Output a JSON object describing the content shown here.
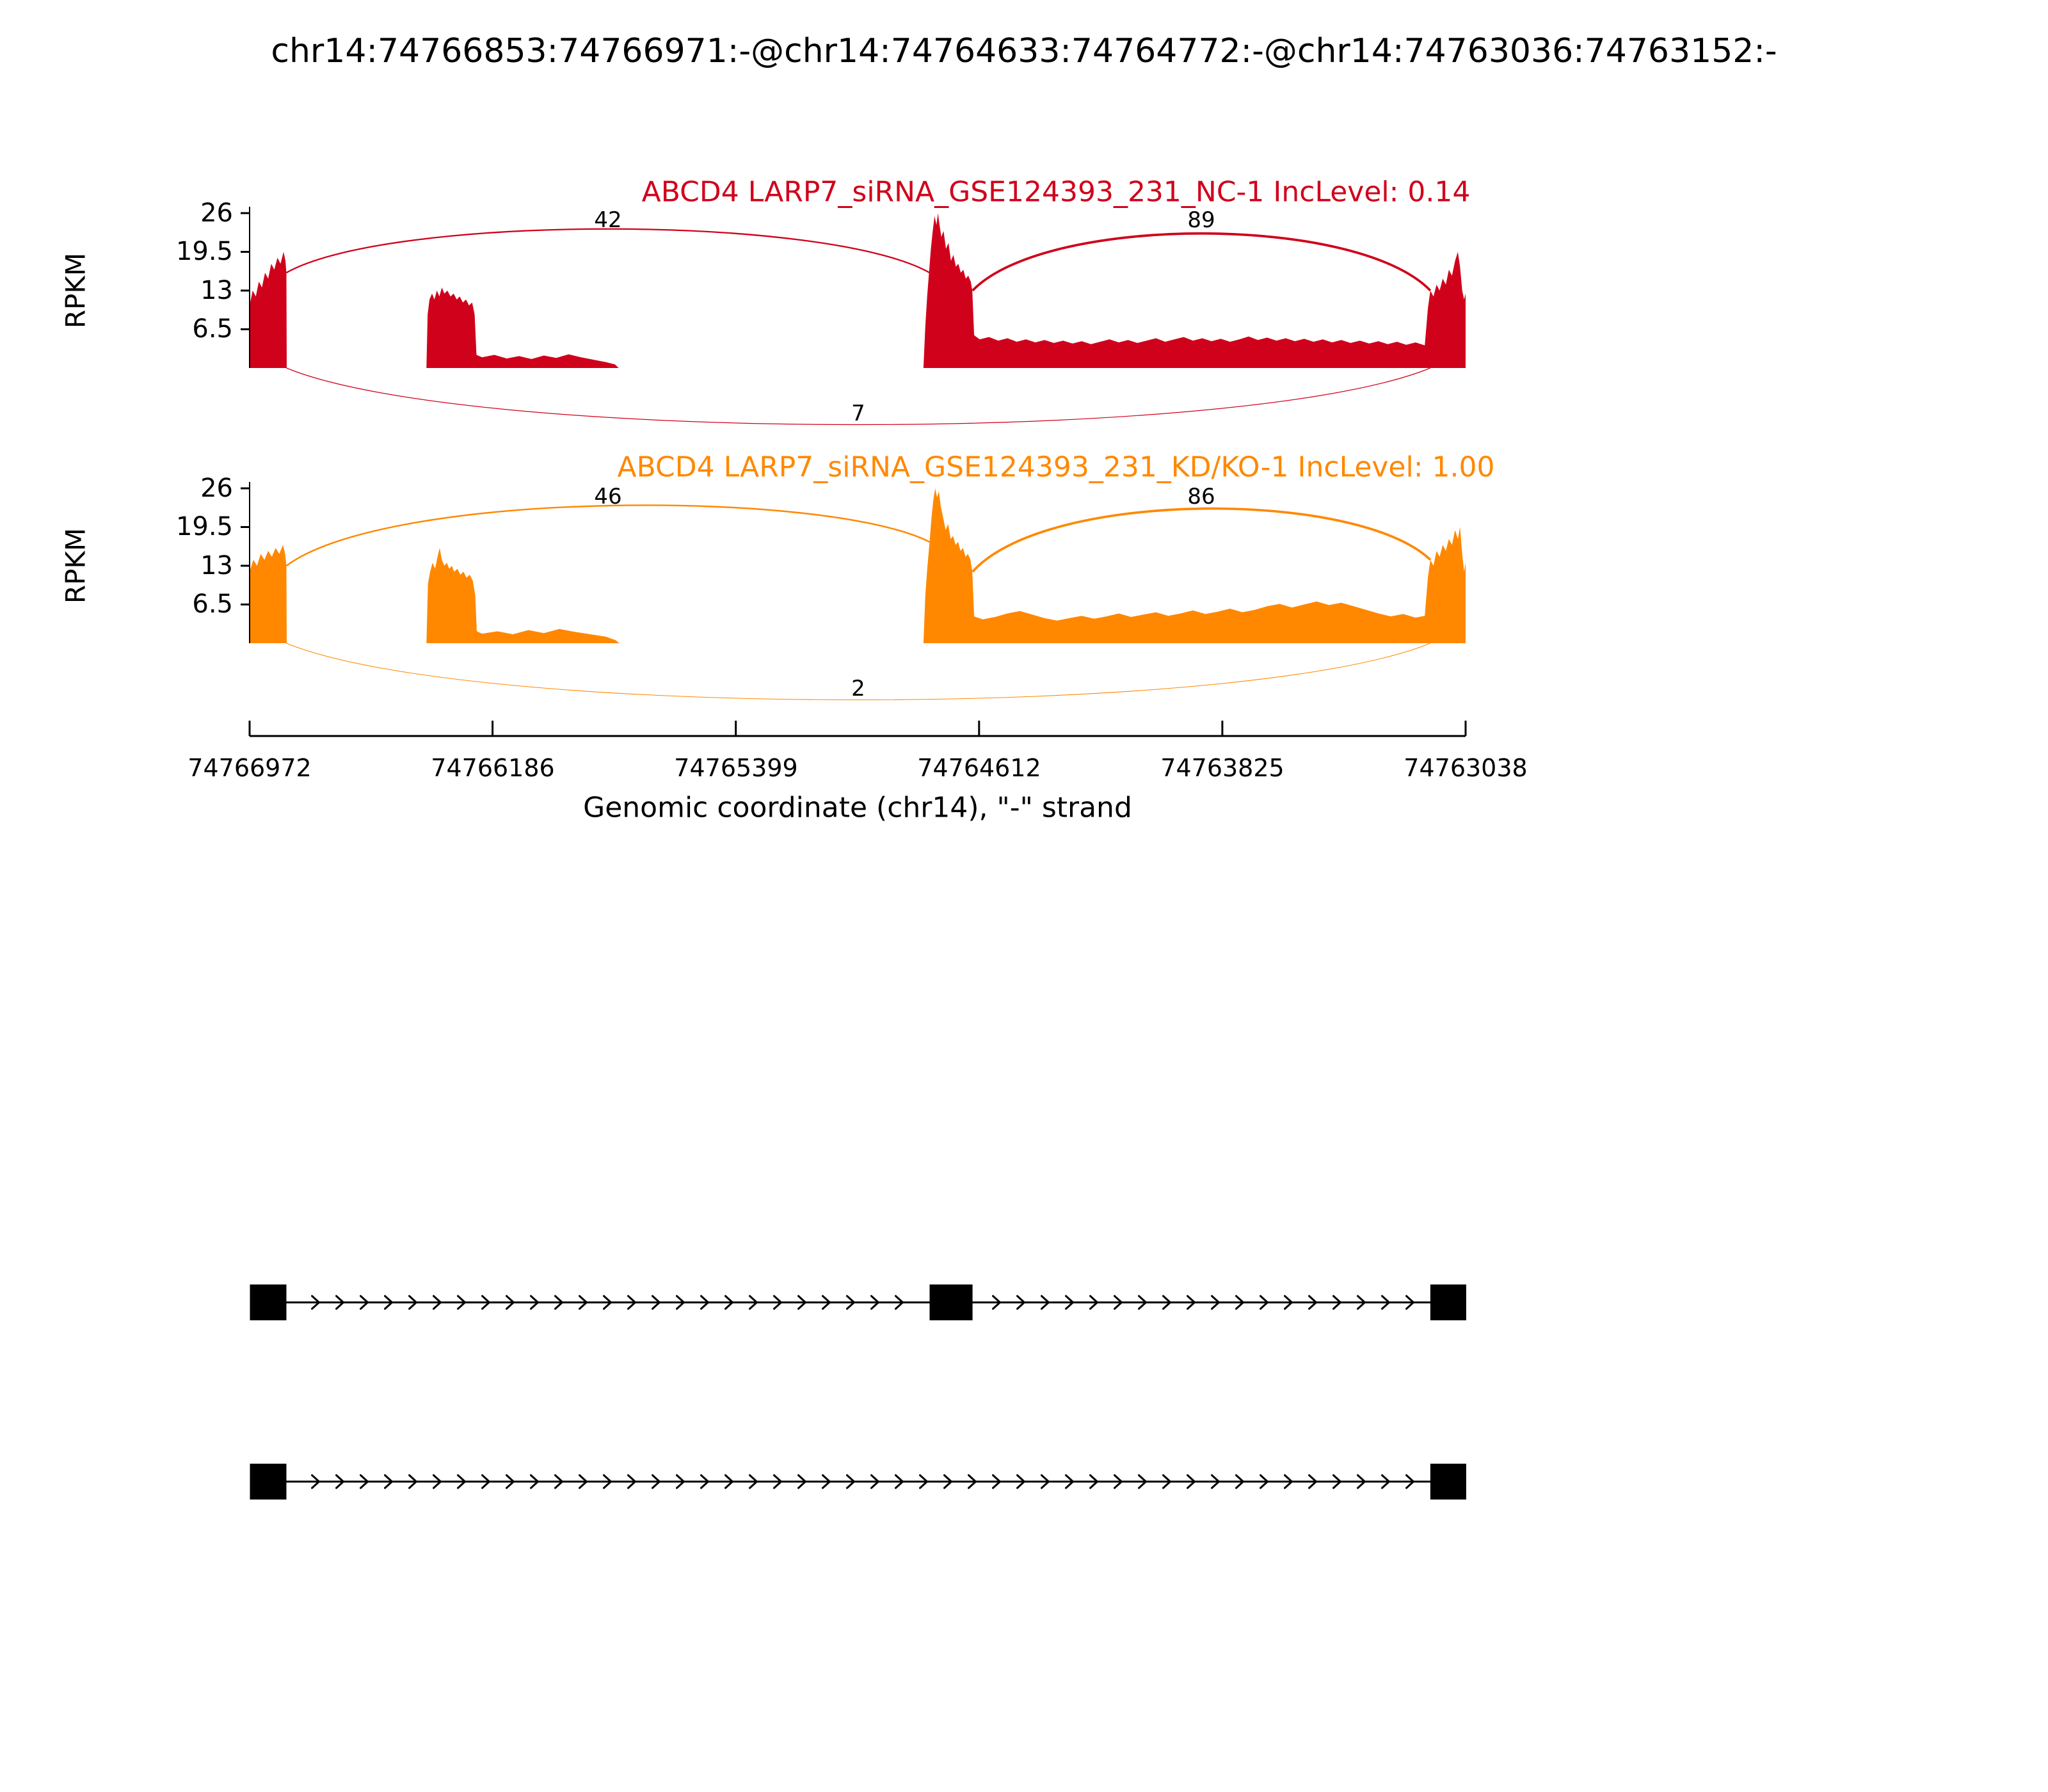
{
  "title": "chr14:74766853:74766971:-@chr14:74764633:74764772:-@chr14:74763036:74763152:-",
  "chart_data": {
    "type": "area",
    "subtype": "sashimi-plot",
    "x_axis": {
      "label": "Genomic coordinate (chr14), \"-\" strand",
      "strand": "-",
      "start": 74766972,
      "end": 74763038,
      "ticks": [
        74766972,
        74766186,
        74765399,
        74764612,
        74763825,
        74763038
      ]
    },
    "y_axis": {
      "label": "RPKM",
      "ticks": [
        26,
        19.5,
        13,
        6.5
      ],
      "max": 26
    },
    "tracks": [
      {
        "label": "ABCD4 LARP7_siRNA_GSE124393_231_NC-1 IncLevel: 0.14",
        "inc_level": 0.14,
        "color": "#D0011B",
        "junctions": [
          {
            "start": 74766853,
            "end": 74764772,
            "count": 42,
            "side": "top"
          },
          {
            "start": 74764633,
            "end": 74763152,
            "count": 89,
            "side": "top"
          },
          {
            "start": 74766853,
            "end": 74763152,
            "count": 7,
            "side": "bottom"
          }
        ],
        "coverage": [
          [
            74766972,
            10.5
          ],
          [
            74766962,
            13
          ],
          [
            74766952,
            12
          ],
          [
            74766942,
            14.5
          ],
          [
            74766932,
            13.5
          ],
          [
            74766922,
            16
          ],
          [
            74766912,
            15
          ],
          [
            74766902,
            17.5
          ],
          [
            74766892,
            16.5
          ],
          [
            74766882,
            18.5
          ],
          [
            74766872,
            17.5
          ],
          [
            74766862,
            19.5
          ],
          [
            74766856,
            18
          ],
          [
            74766853,
            16
          ],
          [
            74766852,
            0
          ],
          [
            74766400,
            0
          ],
          [
            74766396,
            9
          ],
          [
            74766390,
            11.5
          ],
          [
            74766382,
            12.5
          ],
          [
            74766374,
            11.5
          ],
          [
            74766366,
            13
          ],
          [
            74766358,
            12
          ],
          [
            74766350,
            13.5
          ],
          [
            74766342,
            12.5
          ],
          [
            74766332,
            13
          ],
          [
            74766322,
            12
          ],
          [
            74766312,
            12.5
          ],
          [
            74766302,
            11.5
          ],
          [
            74766292,
            12
          ],
          [
            74766282,
            11
          ],
          [
            74766272,
            11.5
          ],
          [
            74766262,
            10.5
          ],
          [
            74766252,
            11
          ],
          [
            74766244,
            9
          ],
          [
            74766238,
            2.2
          ],
          [
            74766220,
            1.8
          ],
          [
            74766180,
            2.2
          ],
          [
            74766140,
            1.6
          ],
          [
            74766100,
            2
          ],
          [
            74766060,
            1.5
          ],
          [
            74766020,
            2.1
          ],
          [
            74765980,
            1.7
          ],
          [
            74765940,
            2.3
          ],
          [
            74765900,
            1.8
          ],
          [
            74765860,
            1.4
          ],
          [
            74765820,
            1
          ],
          [
            74765790,
            0.6
          ],
          [
            74765778,
            0
          ],
          [
            74764792,
            0
          ],
          [
            74764786,
            7
          ],
          [
            74764780,
            12
          ],
          [
            74764774,
            16
          ],
          [
            74764768,
            20
          ],
          [
            74764762,
            23
          ],
          [
            74764756,
            25.5
          ],
          [
            74764750,
            24
          ],
          [
            74764745,
            26
          ],
          [
            74764740,
            24
          ],
          [
            74764734,
            22
          ],
          [
            74764727,
            23
          ],
          [
            74764719,
            20
          ],
          [
            74764711,
            21
          ],
          [
            74764703,
            18
          ],
          [
            74764695,
            19
          ],
          [
            74764687,
            17
          ],
          [
            74764679,
            17.5
          ],
          [
            74764671,
            16
          ],
          [
            74764663,
            16.5
          ],
          [
            74764655,
            15
          ],
          [
            74764647,
            15.5
          ],
          [
            74764639,
            14.5
          ],
          [
            74764634,
            13
          ],
          [
            74764628,
            5.5
          ],
          [
            74764610,
            4.8
          ],
          [
            74764580,
            5.2
          ],
          [
            74764550,
            4.6
          ],
          [
            74764520,
            5
          ],
          [
            74764490,
            4.4
          ],
          [
            74764460,
            4.8
          ],
          [
            74764430,
            4.3
          ],
          [
            74764400,
            4.7
          ],
          [
            74764370,
            4.2
          ],
          [
            74764340,
            4.6
          ],
          [
            74764310,
            4.1
          ],
          [
            74764280,
            4.5
          ],
          [
            74764250,
            4
          ],
          [
            74764220,
            4.4
          ],
          [
            74764190,
            4.8
          ],
          [
            74764160,
            4.3
          ],
          [
            74764130,
            4.7
          ],
          [
            74764100,
            4.2
          ],
          [
            74764070,
            4.6
          ],
          [
            74764040,
            5
          ],
          [
            74764010,
            4.4
          ],
          [
            74763980,
            4.8
          ],
          [
            74763950,
            5.2
          ],
          [
            74763920,
            4.6
          ],
          [
            74763890,
            5
          ],
          [
            74763860,
            4.5
          ],
          [
            74763830,
            4.9
          ],
          [
            74763800,
            4.4
          ],
          [
            74763770,
            4.8
          ],
          [
            74763740,
            5.3
          ],
          [
            74763710,
            4.7
          ],
          [
            74763680,
            5.1
          ],
          [
            74763650,
            4.6
          ],
          [
            74763620,
            5
          ],
          [
            74763590,
            4.5
          ],
          [
            74763560,
            4.9
          ],
          [
            74763530,
            4.4
          ],
          [
            74763500,
            4.8
          ],
          [
            74763470,
            4.3
          ],
          [
            74763440,
            4.7
          ],
          [
            74763410,
            4.2
          ],
          [
            74763380,
            4.6
          ],
          [
            74763350,
            4.1
          ],
          [
            74763320,
            4.5
          ],
          [
            74763290,
            4
          ],
          [
            74763260,
            4.4
          ],
          [
            74763230,
            3.9
          ],
          [
            74763200,
            4.3
          ],
          [
            74763170,
            3.8
          ],
          [
            74763160,
            10
          ],
          [
            74763152,
            13
          ],
          [
            74763142,
            12
          ],
          [
            74763132,
            14
          ],
          [
            74763122,
            13
          ],
          [
            74763112,
            15
          ],
          [
            74763102,
            14
          ],
          [
            74763092,
            16.5
          ],
          [
            74763082,
            15.5
          ],
          [
            74763072,
            18
          ],
          [
            74763063,
            19.5
          ],
          [
            74763056,
            17
          ],
          [
            74763049,
            13
          ],
          [
            74763043,
            11.5
          ],
          [
            74763038,
            12.5
          ]
        ]
      },
      {
        "label": "ABCD4 LARP7_siRNA_GSE124393_231_KD/KO-1 IncLevel: 1.00",
        "inc_level": 1.0,
        "color": "#FF8800",
        "junctions": [
          {
            "start": 74766853,
            "end": 74764772,
            "count": 46,
            "side": "top"
          },
          {
            "start": 74764633,
            "end": 74763152,
            "count": 86,
            "side": "top"
          },
          {
            "start": 74766853,
            "end": 74763152,
            "count": 2,
            "side": "bottom"
          }
        ],
        "coverage": [
          [
            74766972,
            12
          ],
          [
            74766960,
            14
          ],
          [
            74766948,
            13
          ],
          [
            74766936,
            15
          ],
          [
            74766924,
            14
          ],
          [
            74766912,
            15.5
          ],
          [
            74766900,
            14.5
          ],
          [
            74766888,
            16
          ],
          [
            74766876,
            15
          ],
          [
            74766864,
            16.5
          ],
          [
            74766857,
            15
          ],
          [
            74766853,
            13
          ],
          [
            74766852,
            0
          ],
          [
            74766400,
            0
          ],
          [
            74766395,
            10
          ],
          [
            74766388,
            12
          ],
          [
            74766380,
            13.5
          ],
          [
            74766372,
            12.5
          ],
          [
            74766364,
            14.5
          ],
          [
            74766357,
            16
          ],
          [
            74766350,
            14
          ],
          [
            74766342,
            13
          ],
          [
            74766334,
            13.5
          ],
          [
            74766326,
            12.5
          ],
          [
            74766318,
            13
          ],
          [
            74766310,
            12
          ],
          [
            74766300,
            12.5
          ],
          [
            74766290,
            11.5
          ],
          [
            74766280,
            12
          ],
          [
            74766270,
            11
          ],
          [
            74766260,
            11.5
          ],
          [
            74766250,
            10.5
          ],
          [
            74766242,
            8
          ],
          [
            74766237,
            2
          ],
          [
            74766220,
            1.6
          ],
          [
            74766170,
            2
          ],
          [
            74766120,
            1.5
          ],
          [
            74766070,
            2.2
          ],
          [
            74766020,
            1.7
          ],
          [
            74765970,
            2.4
          ],
          [
            74765920,
            1.9
          ],
          [
            74765870,
            1.5
          ],
          [
            74765820,
            1.1
          ],
          [
            74765788,
            0.5
          ],
          [
            74765776,
            0
          ],
          [
            74764792,
            0
          ],
          [
            74764786,
            8
          ],
          [
            74764779,
            13
          ],
          [
            74764772,
            17
          ],
          [
            74764766,
            21
          ],
          [
            74764760,
            24
          ],
          [
            74764754,
            26
          ],
          [
            74764748,
            24.5
          ],
          [
            74764742,
            25.5
          ],
          [
            74764736,
            23
          ],
          [
            74764728,
            21
          ],
          [
            74764720,
            19
          ],
          [
            74764712,
            20
          ],
          [
            74764704,
            17.5
          ],
          [
            74764696,
            18
          ],
          [
            74764688,
            16.5
          ],
          [
            74764680,
            17
          ],
          [
            74764672,
            15.5
          ],
          [
            74764664,
            16
          ],
          [
            74764656,
            14.5
          ],
          [
            74764648,
            15
          ],
          [
            74764640,
            14
          ],
          [
            74764634,
            12
          ],
          [
            74764628,
            4.5
          ],
          [
            74764600,
            4
          ],
          [
            74764560,
            4.4
          ],
          [
            74764520,
            5
          ],
          [
            74764480,
            5.4
          ],
          [
            74764440,
            4.8
          ],
          [
            74764400,
            4.2
          ],
          [
            74764360,
            3.8
          ],
          [
            74764320,
            4.2
          ],
          [
            74764280,
            4.6
          ],
          [
            74764240,
            4.1
          ],
          [
            74764200,
            4.5
          ],
          [
            74764160,
            5
          ],
          [
            74764120,
            4.4
          ],
          [
            74764080,
            4.8
          ],
          [
            74764040,
            5.2
          ],
          [
            74764000,
            4.6
          ],
          [
            74763960,
            5
          ],
          [
            74763920,
            5.5
          ],
          [
            74763880,
            4.9
          ],
          [
            74763840,
            5.3
          ],
          [
            74763800,
            5.8
          ],
          [
            74763760,
            5.2
          ],
          [
            74763720,
            5.6
          ],
          [
            74763680,
            6.2
          ],
          [
            74763640,
            6.6
          ],
          [
            74763600,
            6
          ],
          [
            74763560,
            6.5
          ],
          [
            74763520,
            7
          ],
          [
            74763480,
            6.4
          ],
          [
            74763440,
            6.8
          ],
          [
            74763400,
            6.2
          ],
          [
            74763360,
            5.6
          ],
          [
            74763320,
            5
          ],
          [
            74763280,
            4.5
          ],
          [
            74763240,
            4.9
          ],
          [
            74763200,
            4.3
          ],
          [
            74763170,
            4.6
          ],
          [
            74763160,
            11
          ],
          [
            74763152,
            14
          ],
          [
            74763142,
            13
          ],
          [
            74763132,
            15.5
          ],
          [
            74763122,
            14.5
          ],
          [
            74763112,
            16.5
          ],
          [
            74763102,
            15.5
          ],
          [
            74763092,
            17.5
          ],
          [
            74763082,
            16.5
          ],
          [
            74763072,
            19
          ],
          [
            74763063,
            17.5
          ],
          [
            74763056,
            19.5
          ],
          [
            74763049,
            15
          ],
          [
            74763043,
            12
          ],
          [
            74763038,
            13.5
          ]
        ]
      }
    ],
    "transcripts": [
      {
        "exons": [
          [
            74766853,
            74766971
          ],
          [
            74764633,
            74764772
          ],
          [
            74763036,
            74763152
          ]
        ]
      },
      {
        "exons": [
          [
            74766853,
            74766971
          ],
          [
            74763036,
            74763152
          ]
        ]
      }
    ]
  }
}
